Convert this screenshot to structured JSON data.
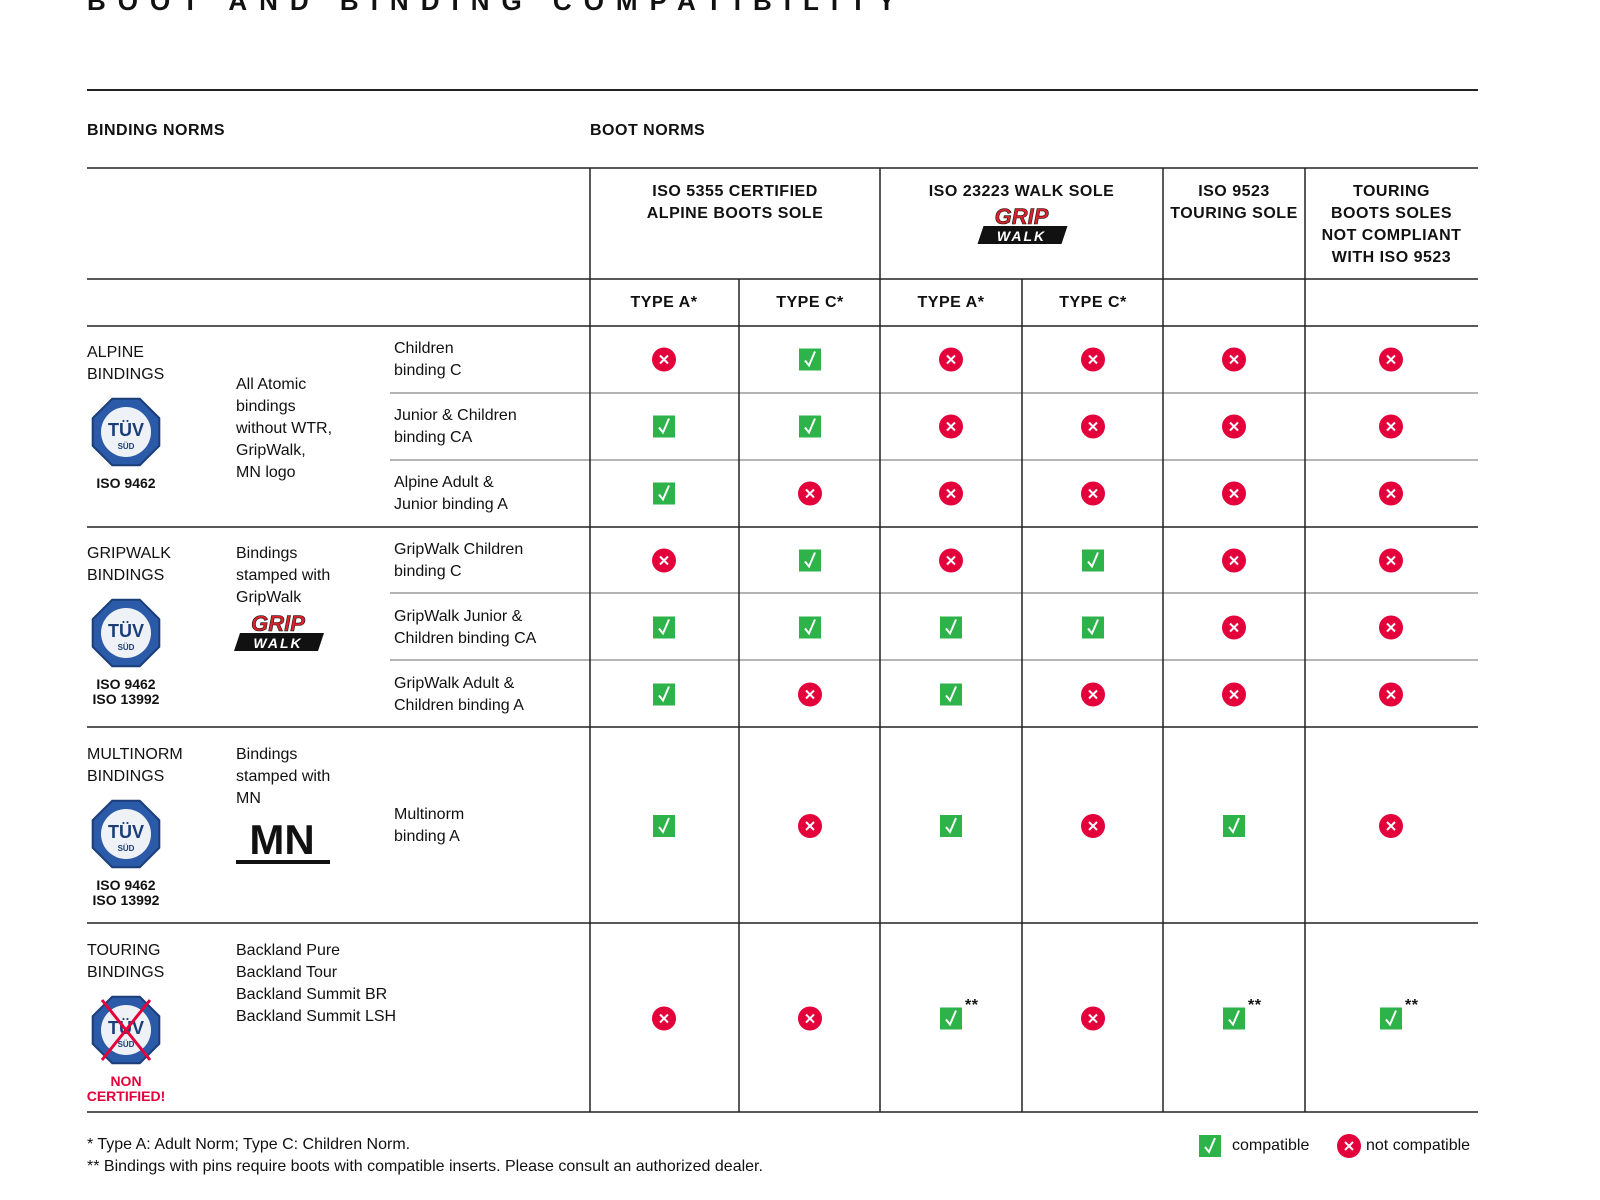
{
  "title": "BOOT AND BINDING COMPATIBILITY",
  "header": {
    "binding_norms": "BINDING NORMS",
    "boot_norms": "BOOT NORMS"
  },
  "boot_columns": [
    {
      "label": "ISO 5355 CERTIFIED\nALPINE BOOTS SOLE",
      "types": [
        "TYPE A*",
        "TYPE C*"
      ]
    },
    {
      "label": "ISO 23223 WALK SOLE",
      "logo": "gripwalk",
      "types": [
        "TYPE A*",
        "TYPE C*"
      ]
    },
    {
      "label": "ISO 9523\nTOURING SOLE"
    },
    {
      "label": "TOURING\nBOOTS SOLES\nNOT COMPLIANT\nWITH ISO 9523"
    }
  ],
  "logos": {
    "tuv": "TÜV",
    "sud": "SÜD",
    "grip": "GRIP",
    "walk": "WALK",
    "mn": "MN"
  },
  "binding_groups": [
    {
      "name": "ALPINE\nBINDINGS",
      "iso": "ISO 9462",
      "certified": true,
      "description": "All Atomic\nbindings\nwithout WTR,\nGripWalk,\nMN logo",
      "rows": [
        {
          "binding": "Children\nbinding C",
          "cells": [
            false,
            true,
            false,
            false,
            false,
            false
          ]
        },
        {
          "binding": "Junior & Children\nbinding CA",
          "cells": [
            true,
            true,
            false,
            false,
            false,
            false
          ]
        },
        {
          "binding": "Alpine Adult &\nJunior binding A",
          "cells": [
            true,
            false,
            false,
            false,
            false,
            false
          ]
        }
      ]
    },
    {
      "name": "GRIPWALK\nBINDINGS",
      "iso": "ISO 9462\nISO 13992",
      "certified": true,
      "description": "Bindings\nstamped with\nGripWalk",
      "logo": "gripwalk",
      "rows": [
        {
          "binding": "GripWalk Children\nbinding C",
          "cells": [
            false,
            true,
            false,
            true,
            false,
            false
          ]
        },
        {
          "binding": "GripWalk Junior &\nChildren binding CA",
          "cells": [
            true,
            true,
            true,
            true,
            false,
            false
          ]
        },
        {
          "binding": "GripWalk Adult &\nChildren binding A",
          "cells": [
            true,
            false,
            true,
            false,
            false,
            false
          ]
        }
      ]
    },
    {
      "name": "MULTINORM\nBINDINGS",
      "iso": "ISO 9462\nISO 13992",
      "certified": true,
      "description": "Bindings\nstamped with\nMN",
      "logo": "mn",
      "rows": [
        {
          "binding": "Multinorm\nbinding A",
          "cells": [
            true,
            false,
            true,
            false,
            true,
            false
          ]
        }
      ]
    },
    {
      "name": "TOURING\nBINDINGS",
      "iso": "NON\nCERTIFIED!",
      "certified": false,
      "description": "Backland Pure\nBackland Tour\nBackland Summit BR\nBackland Summit LSH",
      "rows": [
        {
          "cells": [
            false,
            false,
            {
              "compatible": true,
              "note": "**"
            },
            false,
            {
              "compatible": true,
              "note": "**"
            },
            {
              "compatible": true,
              "note": "**"
            }
          ]
        }
      ]
    }
  ],
  "footnotes": [
    "* Type A: Adult Norm; Type C: Children Norm.",
    "** Bindings with pins require boots with compatible inserts. Please consult an authorized dealer."
  ],
  "legend": {
    "compatible": "compatible",
    "not_compatible": "not compatible"
  }
}
